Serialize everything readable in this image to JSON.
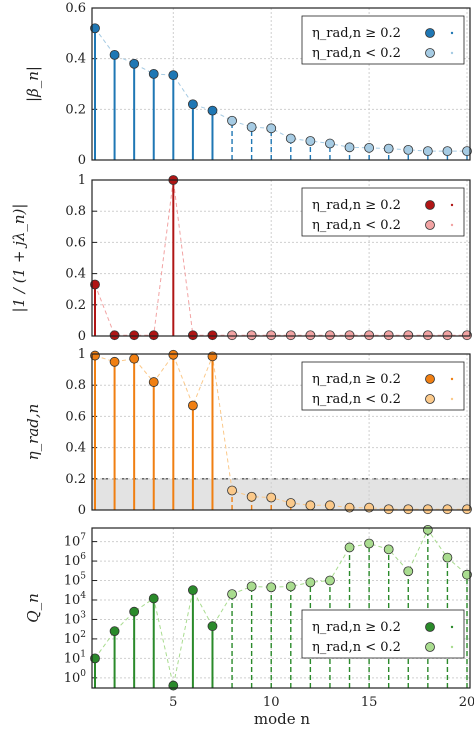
{
  "figure": {
    "x_axis_label": "mode n"
  },
  "chart_data": [
    {
      "type": "stem",
      "ylabel": "|β_n|",
      "color": "#1f77b4",
      "color_light": "#a6cbe3",
      "ylim": [
        0,
        0.6
      ],
      "yticks": [
        "0",
        "0.2",
        "0.4",
        "0.6"
      ],
      "legend": [
        "η_rad,n ≥ 0.2",
        "η_rad,n < 0.2"
      ],
      "series": [
        {
          "name": "η_rad,n ≥ 0.2",
          "x": [
            1,
            2,
            3,
            4,
            5,
            6,
            7
          ],
          "values": [
            0.52,
            0.415,
            0.38,
            0.34,
            0.335,
            0.22,
            0.195
          ]
        },
        {
          "name": "η_rad,n < 0.2",
          "x": [
            8,
            9,
            10,
            11,
            12,
            13,
            14,
            15,
            16,
            17,
            18,
            19,
            20
          ],
          "values": [
            0.155,
            0.13,
            0.125,
            0.085,
            0.075,
            0.065,
            0.05,
            0.048,
            0.045,
            0.04,
            0.035,
            0.035,
            0.035
          ]
        }
      ]
    },
    {
      "type": "stem",
      "ylabel": "|1 / (1 + jλ_n)|",
      "color": "#b01515",
      "color_light": "#f2a3a3",
      "ylim": [
        0,
        1
      ],
      "yticks": [
        "0",
        "0.2",
        "0.4",
        "0.6",
        "0.8",
        "1"
      ],
      "legend": [
        "η_rad,n ≥ 0.2",
        "η_rad,n < 0.2"
      ],
      "series": [
        {
          "name": "η_rad,n ≥ 0.2",
          "x": [
            1,
            2,
            3,
            4,
            5,
            6,
            7
          ],
          "values": [
            0.33,
            0.005,
            0.005,
            0.005,
            1.0,
            0.005,
            0.005
          ]
        },
        {
          "name": "η_rad,n < 0.2",
          "x": [
            8,
            9,
            10,
            11,
            12,
            13,
            14,
            15,
            16,
            17,
            18,
            19,
            20
          ],
          "values": [
            0.005,
            0.005,
            0.005,
            0.005,
            0.005,
            0.005,
            0.005,
            0.005,
            0.005,
            0.005,
            0.005,
            0.005,
            0.005
          ]
        }
      ]
    },
    {
      "type": "stem",
      "ylabel": "η_rad,n",
      "color": "#f07f12",
      "color_light": "#fbc98a",
      "ylim": [
        0,
        1
      ],
      "yticks": [
        "0",
        "0.2",
        "0.4",
        "0.6",
        "0.8",
        "1"
      ],
      "threshold": 0.2,
      "legend": [
        "η_rad,n ≥ 0.2",
        "η_rad,n < 0.2"
      ],
      "series": [
        {
          "name": "η_rad,n ≥ 0.2",
          "x": [
            1,
            2,
            3,
            4,
            5,
            6,
            7
          ],
          "values": [
            0.99,
            0.95,
            0.97,
            0.82,
            0.995,
            0.67,
            0.985
          ]
        },
        {
          "name": "η_rad,n < 0.2",
          "x": [
            8,
            9,
            10,
            11,
            12,
            13,
            14,
            15,
            16,
            17,
            18,
            19,
            20
          ],
          "values": [
            0.125,
            0.085,
            0.08,
            0.045,
            0.03,
            0.03,
            0.015,
            0.015,
            0.005,
            0.005,
            0.005,
            0.005,
            0.005
          ]
        }
      ]
    },
    {
      "type": "stem",
      "ylabel": "Q_n",
      "scale": "log",
      "color": "#2a8a2a",
      "color_light": "#a9dc8f",
      "ylim": [
        0.3,
        50000000
      ],
      "yticks": [
        "10^0",
        "10^1",
        "10^2",
        "10^3",
        "10^4",
        "10^5",
        "10^6",
        "10^7"
      ],
      "xlim": [
        1,
        20
      ],
      "xticks": [
        5,
        10,
        15,
        20
      ],
      "legend": [
        "η_rad,n ≥ 0.2",
        "η_rad,n < 0.2"
      ],
      "series": [
        {
          "name": "η_rad,n ≥ 0.2",
          "x": [
            1,
            2,
            3,
            4,
            5,
            6,
            7
          ],
          "values": [
            10,
            250,
            2500,
            12000,
            0.4,
            32000,
            450
          ]
        },
        {
          "name": "η_rad,n < 0.2",
          "x": [
            8,
            9,
            10,
            11,
            12,
            13,
            14,
            15,
            16,
            17,
            18,
            19,
            20
          ],
          "values": [
            20000,
            50000,
            45000,
            50000,
            80000,
            100000,
            5000000,
            8000000,
            4000000,
            300000,
            40000000,
            1500000,
            200000
          ]
        }
      ]
    }
  ]
}
